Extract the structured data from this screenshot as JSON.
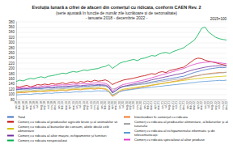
{
  "chart_data": {
    "type": "line",
    "title": "Evoluția lunară a cifrei de afaceri din comerțul cu ridicata, conform CAEN Rev. 2",
    "subtitle": "(serie ajustată în funcție de număr zile lucrătoare și de sezonalitate)\n- ianuarie 2018 - decembrie 2022 -",
    "annotations": [
      "2015=100"
    ],
    "categories": [
      "ian.18",
      "feb.18",
      "mar.18",
      "apr.18",
      "mai.18",
      "iun.18",
      "iul.18",
      "aug.18",
      "sep.18",
      "oct.18",
      "nov.18",
      "dec.18",
      "ian.19",
      "feb.19",
      "mar.19",
      "apr.19",
      "mai.19",
      "iun.19",
      "iul.19",
      "aug.19",
      "sep.19",
      "oct.19",
      "nov.19",
      "dec.19",
      "ian.20",
      "feb.20",
      "mar.20",
      "apr.20",
      "mai.20",
      "iun.20",
      "iul.20",
      "aug.20",
      "sep.20",
      "oct.20",
      "nov.20",
      "dec.20",
      "ian.21",
      "feb.21",
      "mar.21",
      "apr.21",
      "mai.21",
      "iun.21",
      "iul.21",
      "aug.21",
      "sep.21",
      "oct.21",
      "nov.21",
      "dec.21",
      "ian.22",
      "feb.22",
      "mar.22",
      "apr.22",
      "mai.22",
      "iun.22",
      "iul.22",
      "aug.22",
      "sep.22",
      "oct.22",
      "nov.22",
      "dec.22"
    ],
    "series": [
      {
        "name": "Total",
        "color": "#4472c4",
        "values": [
          118,
          119,
          120,
          121,
          120,
          122,
          123,
          122,
          124,
          125,
          124,
          126,
          127,
          126,
          128,
          129,
          130,
          129,
          131,
          132,
          131,
          133,
          134,
          135,
          134,
          133,
          125,
          108,
          115,
          124,
          130,
          132,
          134,
          136,
          138,
          140,
          142,
          145,
          148,
          150,
          153,
          155,
          158,
          160,
          163,
          165,
          168,
          170,
          175,
          180,
          185,
          188,
          192,
          195,
          198,
          200,
          202,
          204,
          203,
          205
        ]
      },
      {
        "name": "Intermedieri în comerțul cu ridicata",
        "color": "#ed7d31",
        "values": [
          105,
          107,
          106,
          108,
          110,
          109,
          111,
          112,
          110,
          113,
          114,
          113,
          115,
          116,
          114,
          117,
          118,
          119,
          117,
          120,
          121,
          122,
          120,
          123,
          122,
          120,
          110,
          92,
          100,
          110,
          116,
          118,
          120,
          122,
          125,
          127,
          130,
          132,
          135,
          137,
          140,
          142,
          145,
          147,
          150,
          152,
          155,
          158,
          162,
          166,
          170,
          172,
          175,
          178,
          180,
          182,
          183,
          185,
          184,
          186
        ]
      },
      {
        "name": "Comerț cu ridicata al produselor agricole brute și al animalelor vii",
        "color": "#c00000",
        "values": [
          130,
          128,
          132,
          135,
          129,
          133,
          138,
          136,
          140,
          137,
          142,
          139,
          141,
          145,
          140,
          146,
          148,
          143,
          150,
          147,
          152,
          149,
          155,
          151,
          153,
          156,
          150,
          138,
          145,
          150,
          155,
          158,
          160,
          163,
          166,
          170,
          172,
          176,
          180,
          178,
          185,
          188,
          184,
          192,
          195,
          198,
          202,
          205,
          215,
          225,
          235,
          240,
          238,
          232,
          228,
          225,
          222,
          218,
          215,
          212
        ]
      },
      {
        "name": "Comerț cu ridicata al produselor alimentare, al băuturilor și al tutunului",
        "color": "#a5a5a5",
        "values": [
          112,
          113,
          114,
          115,
          114,
          116,
          117,
          118,
          117,
          119,
          120,
          121,
          121,
          122,
          123,
          124,
          123,
          125,
          126,
          127,
          126,
          128,
          129,
          130,
          133,
          131,
          135,
          120,
          124,
          128,
          131,
          133,
          134,
          136,
          137,
          139,
          140,
          142,
          144,
          146,
          148,
          150,
          152,
          154,
          156,
          158,
          160,
          162,
          165,
          168,
          171,
          173,
          175,
          177,
          178,
          180,
          181,
          183,
          184,
          185
        ]
      },
      {
        "name": "Comerț cu ridicata al bunurilor de consum, altele decât cele alimentare",
        "color": "#d4c400",
        "values": [
          108,
          109,
          110,
          111,
          110,
          112,
          113,
          112,
          114,
          115,
          116,
          115,
          117,
          118,
          117,
          119,
          120,
          121,
          120,
          122,
          123,
          124,
          123,
          125,
          124,
          123,
          115,
          95,
          105,
          115,
          120,
          122,
          124,
          126,
          128,
          130,
          132,
          134,
          136,
          138,
          140,
          142,
          144,
          146,
          148,
          150,
          152,
          154,
          156,
          158,
          160,
          162,
          163,
          165,
          166,
          167,
          168,
          169,
          170,
          171
        ]
      },
      {
        "name": "Comerț cu ridicata al echipamentului informatic și de telecomunicații",
        "color": "#5b9bd5",
        "values": [
          98,
          99,
          100,
          101,
          100,
          102,
          103,
          102,
          104,
          105,
          104,
          106,
          106,
          107,
          108,
          107,
          109,
          110,
          109,
          111,
          112,
          111,
          113,
          114,
          113,
          114,
          110,
          98,
          104,
          110,
          114,
          116,
          118,
          120,
          122,
          124,
          125,
          126,
          128,
          129,
          131,
          132,
          134,
          135,
          137,
          138,
          140,
          141,
          143,
          145,
          146,
          148,
          149,
          150,
          151,
          152,
          153,
          154,
          153,
          155
        ]
      },
      {
        "name": "Comerț cu ridicata al altor mașini, echipamente și furnituri",
        "color": "#7030a0",
        "values": [
          120,
          121,
          123,
          122,
          124,
          125,
          124,
          126,
          127,
          128,
          127,
          129,
          130,
          131,
          130,
          132,
          133,
          134,
          133,
          135,
          136,
          137,
          136,
          138,
          137,
          136,
          128,
          105,
          115,
          125,
          131,
          134,
          137,
          140,
          143,
          146,
          149,
          152,
          156,
          159,
          162,
          165,
          168,
          171,
          174,
          177,
          180,
          183,
          188,
          192,
          196,
          199,
          202,
          205,
          207,
          209,
          210,
          211,
          210,
          212
        ]
      },
      {
        "name": "Comerț cu ridicata specializat al altor produse",
        "color": "#e040c8",
        "values": [
          124,
          125,
          127,
          126,
          128,
          130,
          129,
          131,
          133,
          132,
          134,
          135,
          136,
          137,
          136,
          138,
          140,
          139,
          141,
          142,
          141,
          143,
          144,
          145,
          144,
          143,
          135,
          112,
          122,
          132,
          138,
          141,
          144,
          147,
          150,
          153,
          156,
          160,
          164,
          168,
          172,
          176,
          180,
          184,
          188,
          192,
          196,
          200,
          206,
          212,
          216,
          220,
          222,
          224,
          225,
          226,
          224,
          222,
          220,
          218
        ]
      },
      {
        "name": "Comerț cu ridicata nespecializat",
        "color": "#00b050",
        "values": [
          150,
          155,
          152,
          158,
          162,
          160,
          165,
          168,
          164,
          170,
          172,
          175,
          178,
          182,
          180,
          185,
          188,
          186,
          190,
          194,
          192,
          196,
          198,
          200,
          205,
          208,
          215,
          200,
          210,
          220,
          225,
          228,
          232,
          235,
          230,
          238,
          240,
          245,
          250,
          248,
          255,
          260,
          262,
          258,
          265,
          270,
          275,
          280,
          290,
          300,
          310,
          330,
          355,
          360,
          340,
          330,
          320,
          315,
          312,
          310
        ]
      }
    ],
    "ylim": [
      80,
      380
    ],
    "yticks": [
      80,
      100,
      120,
      140,
      160,
      180,
      200,
      220,
      240,
      260,
      280,
      300,
      320,
      340,
      360,
      380
    ],
    "grid": true,
    "legend": "bottom"
  }
}
